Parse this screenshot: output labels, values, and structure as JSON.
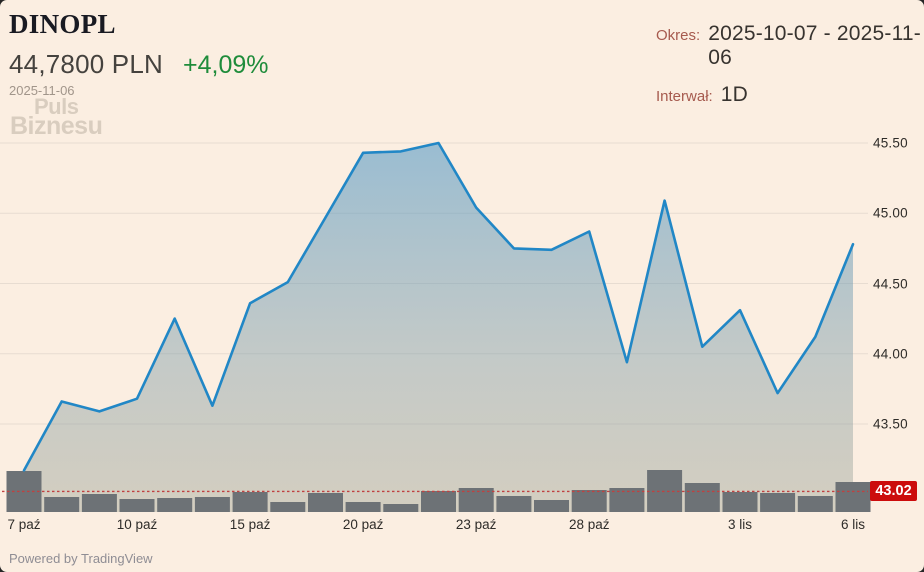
{
  "header": {
    "title": "DINOPL",
    "price": "44,7800 PLN",
    "change": "+4,09%",
    "date": "2025-11-06",
    "period_label": "Okres:",
    "period_value": "2025-10-07 - 2025-11-06",
    "interval_label": "Interwał:",
    "interval_value": "1D"
  },
  "watermark": {
    "line1": "Puls",
    "line2": "Biznesu"
  },
  "footer": {
    "powered_by": "Powered by TradingView"
  },
  "colors": {
    "background": "#fbeee1",
    "line": "#2187c6",
    "area_top": "rgba(73,148,197,0.55)",
    "area_mid": "rgba(130,158,168,0.45)",
    "area_bottom": "rgba(152,158,143,0.40)",
    "volume_bar": "#6d7276",
    "grid": "#e7dcd1",
    "ref_line": "#c04040",
    "badge_bg": "#cc0c0c",
    "badge_text": "#ffffff",
    "change_green": "#1f8c3b",
    "label_red": "#a65a4e"
  },
  "chart_data": {
    "type": "area",
    "title": "DINOPL close price, PLN",
    "interval": "1D",
    "x": [
      "2025-10-07",
      "2025-10-08",
      "2025-10-09",
      "2025-10-10",
      "2025-10-13",
      "2025-10-14",
      "2025-10-15",
      "2025-10-16",
      "2025-10-17",
      "2025-10-20",
      "2025-10-21",
      "2025-10-22",
      "2025-10-23",
      "2025-10-24",
      "2025-10-27",
      "2025-10-28",
      "2025-10-29",
      "2025-10-30",
      "2025-10-31",
      "2025-11-03",
      "2025-11-04",
      "2025-11-05",
      "2025-11-06"
    ],
    "series": [
      {
        "name": "close",
        "values": [
          43.17,
          43.66,
          43.59,
          43.68,
          44.25,
          43.63,
          44.36,
          44.51,
          44.97,
          45.43,
          45.44,
          45.5,
          45.04,
          44.75,
          44.74,
          44.87,
          43.94,
          45.09,
          44.05,
          44.31,
          43.72,
          44.12,
          44.78
        ]
      },
      {
        "name": "volume_relative_height",
        "values": [
          41,
          15,
          18,
          13,
          14,
          15,
          20,
          10,
          19,
          10,
          8,
          21,
          24,
          16,
          12,
          22,
          24,
          42,
          29,
          20,
          19,
          16,
          30
        ]
      }
    ],
    "y_axis": {
      "tick_labels": [
        "45.50",
        "45.00",
        "44.50",
        "44.00",
        "43.50"
      ],
      "tick_values": [
        45.5,
        45.0,
        44.5,
        44.0,
        43.5
      ],
      "ref_price_label": "43.02",
      "ref_price": 43.02,
      "ylim": [
        43.02,
        45.62
      ],
      "grid": true,
      "position": "right"
    },
    "x_axis": {
      "ticks": [
        {
          "index": 0,
          "label": "7 paź"
        },
        {
          "index": 3,
          "label": "10 paź"
        },
        {
          "index": 6,
          "label": "15 paź"
        },
        {
          "index": 9,
          "label": "20 paź"
        },
        {
          "index": 12,
          "label": "23 paź"
        },
        {
          "index": 15,
          "label": "28 paź"
        },
        {
          "index": 19,
          "label": "3 lis"
        },
        {
          "index": 22,
          "label": "6 lis"
        }
      ]
    }
  }
}
